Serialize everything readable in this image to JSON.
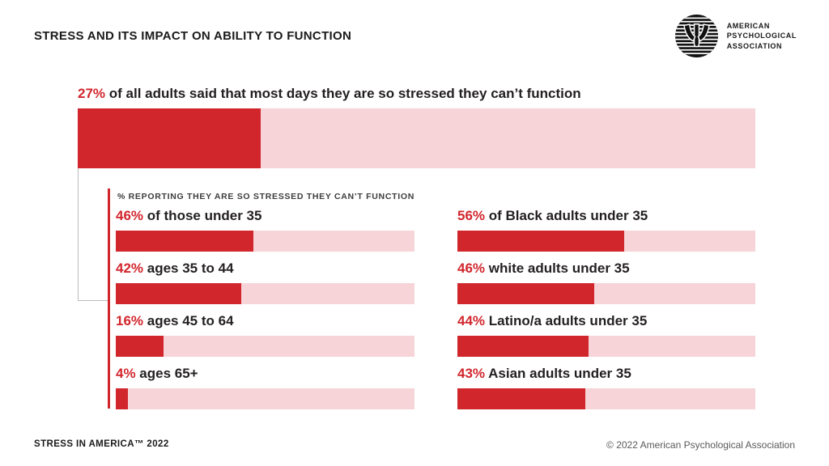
{
  "header": {
    "title": "STRESS AND ITS IMPACT ON ABILITY TO FUNCTION",
    "logo_text": "AMERICAN\nPSYCHOLOGICAL\nASSOCIATION"
  },
  "overall": {
    "value": "27%",
    "text": " of all adults said that most days they are so stressed they can’t function",
    "pct": 27
  },
  "group_label": "% REPORTING THEY ARE SO STRESSED THEY CAN’T FUNCTION",
  "left_rows": [
    {
      "value": "46%",
      "label": " of those under 35",
      "pct": 46
    },
    {
      "value": "42%",
      "label": " ages 35 to 44",
      "pct": 42
    },
    {
      "value": "16%",
      "label": " ages 45 to 64",
      "pct": 16
    },
    {
      "value": "4%",
      "label": " ages 65+",
      "pct": 4
    }
  ],
  "right_rows": [
    {
      "value": "56%",
      "label": " of Black adults under 35",
      "pct": 56
    },
    {
      "value": "46%",
      "label": " white adults under 35",
      "pct": 46
    },
    {
      "value": "44%",
      "label": " Latino/a adults under 35",
      "pct": 44
    },
    {
      "value": "43%",
      "label": " Asian adults under 35",
      "pct": 43
    }
  ],
  "footer": {
    "left": "STRESS IN AMERICA™ 2022",
    "right": "© 2022 American Psychological Association"
  },
  "colors": {
    "accent_red": "#d2262d",
    "track_pink": "#f7d4d7",
    "text_black": "#231f20",
    "connector_gray": "#bcbcbc"
  },
  "chart_data": [
    {
      "type": "bar",
      "orientation": "horizontal",
      "title": "27% of all adults said that most days they are so stressed they can’t function",
      "categories": [
        "All adults"
      ],
      "values": [
        27
      ],
      "unit": "%",
      "xlim": [
        0,
        100
      ],
      "grid": false,
      "legend": false
    },
    {
      "type": "bar",
      "orientation": "horizontal",
      "title": "% REPORTING THEY ARE SO STRESSED THEY CAN’T FUNCTION — by age",
      "categories": [
        "Under 35",
        "Ages 35 to 44",
        "Ages 45 to 64",
        "Ages 65+"
      ],
      "values": [
        46,
        42,
        16,
        4
      ],
      "unit": "%",
      "xlim": [
        0,
        100
      ],
      "grid": false,
      "legend": false
    },
    {
      "type": "bar",
      "orientation": "horizontal",
      "title": "% REPORTING THEY ARE SO STRESSED THEY CAN’T FUNCTION — adults under 35 by race/ethnicity",
      "categories": [
        "Black adults under 35",
        "White adults under 35",
        "Latino/a adults under 35",
        "Asian adults under 35"
      ],
      "values": [
        56,
        46,
        44,
        43
      ],
      "unit": "%",
      "xlim": [
        0,
        100
      ],
      "grid": false,
      "legend": false
    }
  ]
}
